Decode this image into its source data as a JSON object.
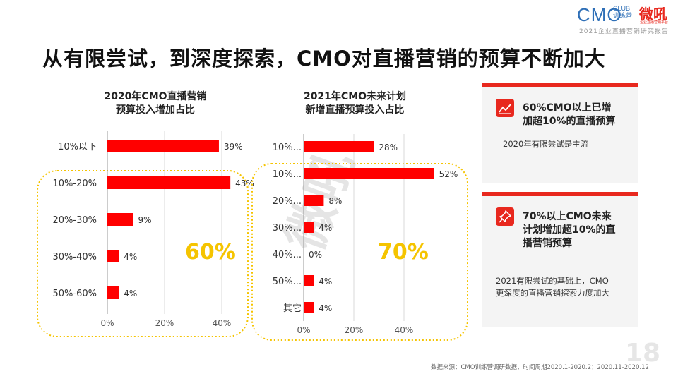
{
  "header": {
    "title": "从有限尝试，到深度探索，CMO对直播营销的预算不断加大",
    "logo_cmo": "CMO",
    "logo_club": "CLUB",
    "logo_club_sub": "训练营",
    "logo_brand": "微吼",
    "logo_brand_sub": "企业直播营销平台",
    "logo_subtitle": "2021企业直播营销研究报告"
  },
  "charts": {
    "left_title_line1": "2020年CMO直播营销",
    "left_title_line2": "预算投入增加占比",
    "left_highlight": "60%",
    "right_title_line1": "2021年CMO未来计划",
    "right_title_line2": "新增直播预算投入占比",
    "right_highlight": "70%"
  },
  "chart_data": [
    {
      "type": "bar",
      "orientation": "horizontal",
      "title": "2020年CMO直播营销 预算投入增加占比",
      "categories": [
        "10%以下",
        "10%-20%",
        "20%-30%",
        "30%-40%",
        "50%-60%"
      ],
      "values": [
        39,
        43,
        9,
        4,
        4
      ],
      "value_labels": [
        "39%",
        "43%",
        "9%",
        "4%",
        "4%"
      ],
      "xticks": [
        "0%",
        "20%",
        "40%"
      ],
      "xlim": [
        0,
        50
      ],
      "highlight_label": "60%",
      "color": "#ff0000"
    },
    {
      "type": "bar",
      "orientation": "horizontal",
      "title": "2021年CMO未来计划 新增直播预算投入占比",
      "categories": [
        "10%...",
        "10%...",
        "20%...",
        "30%...",
        "40%...",
        "50%...",
        "其它"
      ],
      "values": [
        28,
        52,
        8,
        4,
        0,
        4,
        4
      ],
      "value_labels": [
        "28%",
        "52%",
        "8%",
        "4%",
        "0%",
        "4%",
        "4%"
      ],
      "xticks": [
        "0%",
        "20%",
        "40%"
      ],
      "xlim": [
        0,
        60
      ],
      "highlight_label": "70%",
      "color": "#ff0000"
    }
  ],
  "cards": [
    {
      "icon": "trend-chart-icon",
      "headline": [
        "60%CMO以上已增",
        "加超10%的直播预算"
      ],
      "body": [
        "2020年有限尝试是主流"
      ]
    },
    {
      "icon": "pushpin-icon",
      "headline": [
        "70%以上CMO未来",
        "计划增加超10%的直",
        "播营销预算"
      ],
      "body": [
        "2021有限尝试的基础上，CMO",
        "更深度的直播营销探索力度加大"
      ]
    }
  ],
  "watermark": "微吼",
  "footer": {
    "source": "数据来源：CMO训练营调研数据，时间周期2020.1-2020.2；2020.11-2020.12",
    "page_number": "18"
  }
}
